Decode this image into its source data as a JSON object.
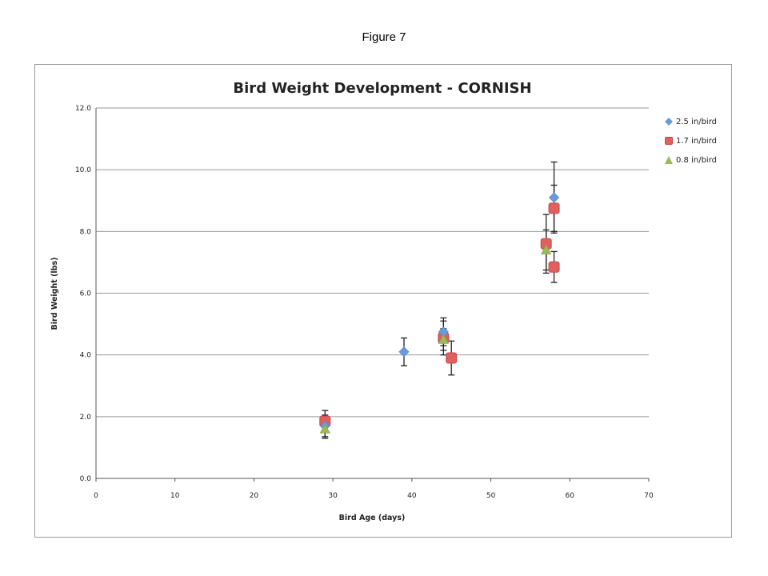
{
  "figure_caption": "Figure 7",
  "chart_data": {
    "type": "scatter",
    "title": "Bird Weight Development - CORNISH",
    "xlabel": "Bird Age (days)",
    "ylabel": "Bird Weight (lbs)",
    "xlim": [
      0,
      70
    ],
    "ylim": [
      0,
      12
    ],
    "x_ticks": [
      "0",
      "10",
      "20",
      "30",
      "40",
      "50",
      "60",
      "70"
    ],
    "y_ticks": [
      "0.0",
      "2.0",
      "4.0",
      "6.0",
      "8.0",
      "10.0",
      "12.0"
    ],
    "grid": "horizontal",
    "legend_position": "right",
    "series": [
      {
        "name": "2.5 in/bird",
        "marker": "diamond",
        "color": "#6a9bd8",
        "points": [
          {
            "x": 29,
            "y": 1.7,
            "err": 0.35
          },
          {
            "x": 39,
            "y": 4.1,
            "err": 0.45
          },
          {
            "x": 44,
            "y": 4.75,
            "err": 0.45
          },
          {
            "x": 58,
            "y": 9.1,
            "err": 1.15
          }
        ]
      },
      {
        "name": "1.7 in/bird",
        "marker": "square",
        "color": "#e06060",
        "points": [
          {
            "x": 29,
            "y": 1.85,
            "err": 0.35
          },
          {
            "x": 44,
            "y": 4.55,
            "err": 0.55
          },
          {
            "x": 45,
            "y": 3.9,
            "err": 0.55
          },
          {
            "x": 57,
            "y": 7.6,
            "err": 0.95
          },
          {
            "x": 58,
            "y": 8.75,
            "err": 0.75
          },
          {
            "x": 58,
            "y": 6.85,
            "err": 0.5
          }
        ]
      },
      {
        "name": "0.8 in/bird",
        "marker": "triangle",
        "color": "#9bbb59",
        "points": [
          {
            "x": 29,
            "y": 1.6,
            "err": 0.3
          },
          {
            "x": 44,
            "y": 4.5,
            "err": 0.35
          },
          {
            "x": 57,
            "y": 7.4,
            "err": 0.65
          }
        ]
      }
    ]
  }
}
